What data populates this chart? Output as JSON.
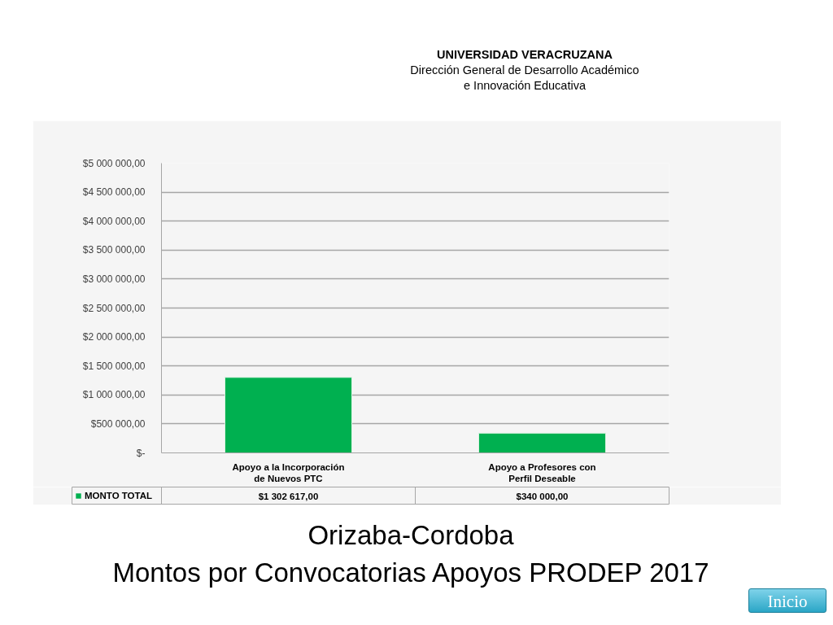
{
  "chart_data": {
    "type": "bar",
    "title": "Orizaba-Cordoba",
    "subtitle": "Montos por Convocatorias Apoyos PRODEP 2017",
    "categories": [
      "Apoyo a la Incorporación de Nuevos PTC",
      "Apoyo a Profesores con Perfil Deseable"
    ],
    "series": [
      {
        "name": "MONTO TOTAL",
        "color": "#00b050",
        "values": [
          1302617,
          340000
        ],
        "value_labels": [
          "$1 302 617,00",
          "$340 000,00"
        ]
      }
    ],
    "ylim": [
      0,
      5000000
    ],
    "yticks": [
      {
        "value": 0,
        "label": "$-"
      },
      {
        "value": 500000,
        "label": "$500 000,00"
      },
      {
        "value": 1000000,
        "label": "$1 000 000,00"
      },
      {
        "value": 1500000,
        "label": "$1 500 000,00"
      },
      {
        "value": 2000000,
        "label": "$2 000 000,00"
      },
      {
        "value": 2500000,
        "label": "$2 500 000,00"
      },
      {
        "value": 3000000,
        "label": "$3 000 000,00"
      },
      {
        "value": 3500000,
        "label": "$3 500 000,00"
      },
      {
        "value": 4000000,
        "label": "$4 000 000,00"
      },
      {
        "value": 4500000,
        "label": "$4 500 000,00"
      },
      {
        "value": 5000000,
        "label": "$5 000 000,00"
      }
    ],
    "grid": "y",
    "legend": "bottom left",
    "annotations": [
      "UNIVERSIDAD VERACRUZANA",
      "Dirección General de Desarrollo Académico e Innovación Educativa",
      "Inicio"
    ]
  }
}
